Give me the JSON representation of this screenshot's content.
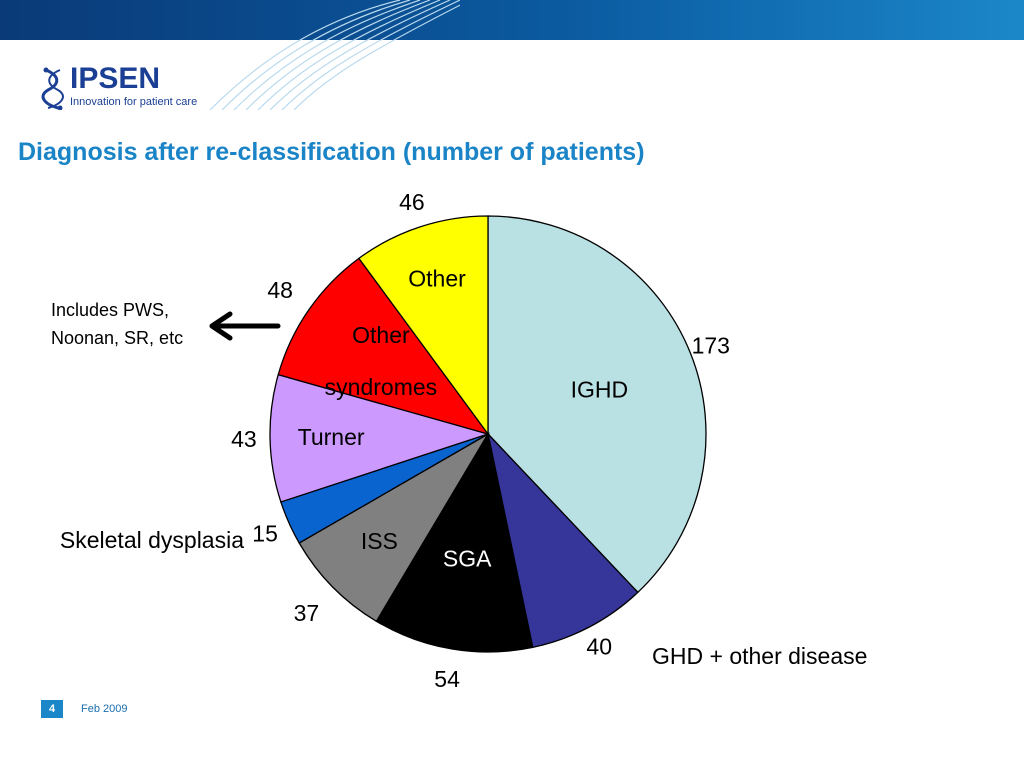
{
  "header": {
    "brand": "IPSEN",
    "tagline": "Innovation for patient care",
    "band_color": "#0b5aa0"
  },
  "slide": {
    "title": "Diagnosis after re-classification (number of patients)",
    "title_color": "#1a84c7",
    "annotation": "Includes PWS, Noonan, SR, etc"
  },
  "footer": {
    "page": "4",
    "date": "Feb 2009"
  },
  "chart_data": {
    "type": "pie",
    "title": "",
    "start": "top",
    "direction": "clockwise",
    "slices": [
      {
        "label": "IGHD",
        "value": 173,
        "color": "#b9e0e3"
      },
      {
        "label": "GHD + other disease",
        "value": 40,
        "color": "#35359a"
      },
      {
        "label": "SGA",
        "value": 54,
        "color": "#000000"
      },
      {
        "label": "ISS",
        "value": 37,
        "color": "#808080"
      },
      {
        "label": "Skeletal dysplasia",
        "value": 15,
        "color": "#0a64cf"
      },
      {
        "label": "Turner",
        "value": 43,
        "color": "#cc99ff"
      },
      {
        "label": "Other syndromes",
        "value": 48,
        "color": "#ff0000"
      },
      {
        "label": "Other",
        "value": 46,
        "color": "#ffff00"
      }
    ]
  }
}
